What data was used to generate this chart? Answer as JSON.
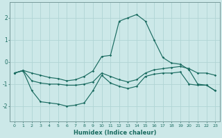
{
  "xlabel": "Humidex (Indice chaleur)",
  "bg_color": "#cce8e8",
  "line_color": "#1a6b60",
  "grid_color": "#b0d4d4",
  "xlim": [
    -0.5,
    23.5
  ],
  "ylim": [
    -2.7,
    2.7
  ],
  "yticks": [
    -2,
    -1,
    0,
    1,
    2
  ],
  "xticks": [
    0,
    1,
    2,
    3,
    4,
    5,
    6,
    7,
    8,
    9,
    10,
    11,
    12,
    13,
    14,
    15,
    16,
    17,
    18,
    19,
    20,
    21,
    22,
    23
  ],
  "line1_x": [
    0,
    1,
    2,
    3,
    4,
    5,
    6,
    7,
    8,
    9,
    10,
    11,
    12,
    13,
    14,
    15,
    16,
    17,
    18,
    19,
    20,
    21,
    22,
    23
  ],
  "line1_y": [
    -0.5,
    -0.4,
    -1.3,
    -1.8,
    -1.85,
    -1.9,
    -2.0,
    -1.95,
    -1.85,
    -1.3,
    -0.6,
    -0.95,
    -1.1,
    -1.2,
    -1.1,
    -0.65,
    -0.55,
    -0.5,
    -0.5,
    -0.45,
    -1.0,
    -1.05,
    -1.05,
    -1.3
  ],
  "line2_x": [
    0,
    1,
    2,
    3,
    4,
    5,
    6,
    7,
    8,
    9,
    10,
    11,
    12,
    13,
    14,
    15,
    16,
    17,
    18,
    19,
    20,
    21,
    22,
    23
  ],
  "line2_y": [
    -0.5,
    -0.38,
    -0.85,
    -0.95,
    -1.0,
    -1.0,
    -1.05,
    -1.05,
    -1.0,
    -0.9,
    -0.5,
    -0.65,
    -0.8,
    -0.9,
    -0.8,
    -0.5,
    -0.35,
    -0.3,
    -0.25,
    -0.2,
    -0.3,
    -0.5,
    -0.5,
    -0.6
  ],
  "line3_x": [
    0,
    1,
    2,
    3,
    4,
    5,
    6,
    7,
    8,
    9,
    10,
    11,
    12,
    13,
    14,
    15,
    16,
    17,
    18,
    19,
    20,
    21,
    22,
    23
  ],
  "line3_y": [
    -0.5,
    -0.38,
    -0.5,
    -0.6,
    -0.7,
    -0.75,
    -0.85,
    -0.8,
    -0.65,
    -0.4,
    0.25,
    0.3,
    1.85,
    2.0,
    2.15,
    1.85,
    1.0,
    0.2,
    -0.05,
    -0.1,
    -0.35,
    -1.0,
    -1.05,
    -1.3
  ]
}
